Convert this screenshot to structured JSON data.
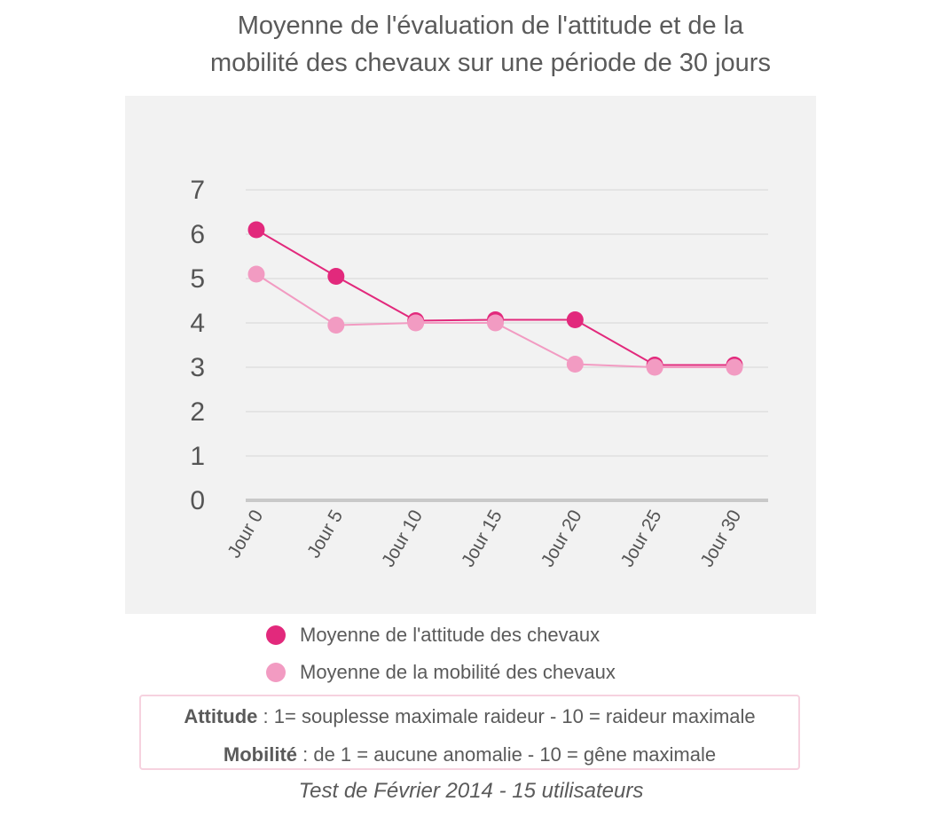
{
  "title_lines": [
    "Moyenne de l'évaluation de l'attitude et de la",
    "mobilité des chevaux sur une période de 30 jours"
  ],
  "chart_data": {
    "type": "line",
    "title": "Moyenne de l'évaluation de l'attitude et de la mobilité des chevaux sur une période de 30 jours",
    "categories": [
      "Jour 0",
      "Jour 5",
      "Jour 10",
      "Jour 15",
      "Jour 20",
      "Jour 25",
      "Jour 30"
    ],
    "ylim": [
      0,
      7
    ],
    "yticks": [
      "0",
      "1",
      "2",
      "3",
      "4",
      "5",
      "6",
      "7"
    ],
    "grid": true,
    "legend_position": "bottom",
    "series": [
      {
        "name": "Moyenne de l'attitude des chevaux",
        "color": "#e2297c",
        "values": [
          6.1,
          5.05,
          4.05,
          4.07,
          4.07,
          3.05,
          3.05
        ]
      },
      {
        "name": "Moyenne de la mobilité des chevaux",
        "color": "#f29bc2",
        "values": [
          5.1,
          3.95,
          4.0,
          4.0,
          3.07,
          3.0,
          3.0
        ]
      }
    ]
  },
  "notes": {
    "attitude_label": "Attitude",
    "attitude_text": " : 1= souplesse maximale raideur - 10 = raideur maximale",
    "mobilite_label": "Mobilité",
    "mobilite_text": " : de 1 = aucune anomalie - 10 = gêne maximale"
  },
  "footer": "Test de Février 2014 - 15 utilisateurs"
}
